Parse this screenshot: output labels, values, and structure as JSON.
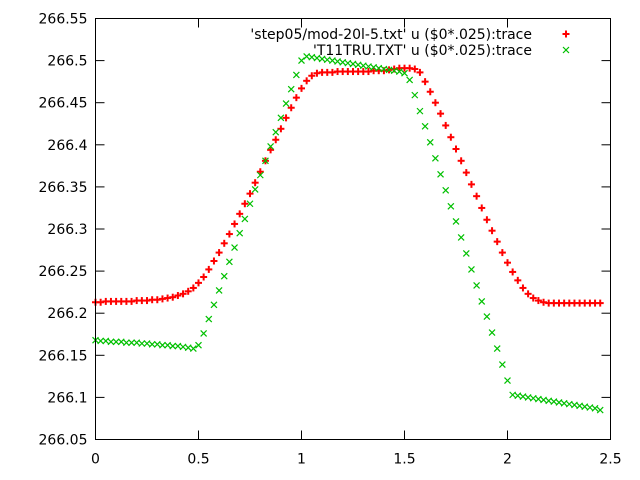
{
  "chart_data": {
    "type": "scatter",
    "title": "",
    "xlabel": "",
    "ylabel": "",
    "xlim": [
      0,
      2.5
    ],
    "ylim": [
      266.05,
      266.55
    ],
    "x_ticks": [
      "0",
      "0.5",
      "1",
      "1.5",
      "2",
      "2.5"
    ],
    "y_ticks": [
      "266.05",
      "266.1",
      "266.15",
      "266.2",
      "266.25",
      "266.3",
      "266.35",
      "266.4",
      "266.45",
      "266.5",
      "266.55"
    ],
    "x_tick_values": [
      0,
      0.5,
      1,
      1.5,
      2,
      2.5
    ],
    "y_tick_values": [
      266.05,
      266.1,
      266.15,
      266.2,
      266.25,
      266.3,
      266.35,
      266.4,
      266.45,
      266.5,
      266.55
    ],
    "grid": false,
    "legend_position": "top-right",
    "series": [
      {
        "name": "'step05/mod-20l-5.txt' u ($0*.025):trace",
        "marker": "plus",
        "color": "#ff0000",
        "x": [
          0,
          0.025,
          0.05,
          0.075,
          0.1,
          0.125,
          0.15,
          0.175,
          0.2,
          0.225,
          0.25,
          0.275,
          0.3,
          0.325,
          0.35,
          0.375,
          0.4,
          0.425,
          0.45,
          0.475,
          0.5,
          0.525,
          0.55,
          0.575,
          0.6,
          0.625,
          0.65,
          0.675,
          0.7,
          0.725,
          0.75,
          0.775,
          0.8,
          0.825,
          0.85,
          0.875,
          0.9,
          0.925,
          0.95,
          0.975,
          1,
          1.025,
          1.05,
          1.075,
          1.1,
          1.125,
          1.15,
          1.175,
          1.2,
          1.225,
          1.25,
          1.275,
          1.3,
          1.325,
          1.35,
          1.375,
          1.4,
          1.425,
          1.45,
          1.475,
          1.5,
          1.525,
          1.55,
          1.575,
          1.6,
          1.625,
          1.65,
          1.675,
          1.7,
          1.725,
          1.75,
          1.775,
          1.8,
          1.825,
          1.85,
          1.875,
          1.9,
          1.925,
          1.95,
          1.975,
          2,
          2.025,
          2.05,
          2.075,
          2.1,
          2.125,
          2.15,
          2.175,
          2.2,
          2.225,
          2.25,
          2.275,
          2.3,
          2.325,
          2.35,
          2.375,
          2.4,
          2.425,
          2.45
        ],
        "y": [
          266.213,
          266.213,
          266.214,
          266.214,
          266.214,
          266.214,
          266.214,
          266.214,
          266.215,
          266.215,
          266.215,
          266.216,
          266.216,
          266.217,
          266.218,
          266.219,
          266.221,
          266.223,
          266.226,
          266.23,
          266.236,
          266.243,
          266.252,
          266.262,
          266.272,
          266.283,
          266.294,
          266.306,
          266.318,
          266.33,
          266.342,
          266.355,
          266.368,
          266.381,
          266.394,
          266.406,
          266.419,
          266.432,
          266.444,
          266.456,
          266.467,
          266.476,
          266.482,
          266.485,
          266.486,
          266.486,
          266.486,
          266.487,
          266.487,
          266.487,
          266.487,
          266.487,
          266.487,
          266.487,
          266.488,
          266.488,
          266.488,
          266.489,
          266.49,
          266.491,
          266.491,
          266.491,
          266.49,
          266.486,
          266.475,
          266.463,
          266.45,
          266.437,
          266.423,
          266.409,
          266.395,
          266.381,
          266.367,
          266.353,
          266.339,
          266.325,
          266.311,
          266.298,
          266.285,
          266.272,
          266.26,
          266.249,
          266.239,
          266.23,
          266.223,
          266.218,
          266.215,
          266.213,
          266.212,
          266.212,
          266.212,
          266.212,
          266.212,
          266.212,
          266.212,
          266.212,
          266.212,
          266.212,
          266.212
        ]
      },
      {
        "name": "'T11TRU.TXT' u ($0*.025):trace",
        "marker": "cross",
        "color": "#00c000",
        "x": [
          0,
          0.025,
          0.05,
          0.075,
          0.1,
          0.125,
          0.15,
          0.175,
          0.2,
          0.225,
          0.25,
          0.275,
          0.3,
          0.325,
          0.35,
          0.375,
          0.4,
          0.425,
          0.45,
          0.475,
          0.5,
          0.525,
          0.55,
          0.575,
          0.6,
          0.625,
          0.65,
          0.675,
          0.7,
          0.725,
          0.75,
          0.775,
          0.8,
          0.825,
          0.85,
          0.875,
          0.9,
          0.925,
          0.95,
          0.975,
          1,
          1.025,
          1.05,
          1.075,
          1.1,
          1.125,
          1.15,
          1.175,
          1.2,
          1.225,
          1.25,
          1.275,
          1.3,
          1.325,
          1.35,
          1.375,
          1.4,
          1.425,
          1.45,
          1.475,
          1.5,
          1.525,
          1.55,
          1.575,
          1.6,
          1.625,
          1.65,
          1.675,
          1.7,
          1.725,
          1.75,
          1.775,
          1.8,
          1.825,
          1.85,
          1.875,
          1.9,
          1.925,
          1.95,
          1.975,
          2,
          2.025,
          2.05,
          2.075,
          2.1,
          2.125,
          2.15,
          2.175,
          2.2,
          2.225,
          2.25,
          2.275,
          2.3,
          2.325,
          2.35,
          2.375,
          2.4,
          2.425,
          2.45
        ],
        "y": [
          266.168,
          266.167,
          266.167,
          266.166,
          266.166,
          266.166,
          266.165,
          266.165,
          266.165,
          266.164,
          266.164,
          266.163,
          266.163,
          266.162,
          266.162,
          266.161,
          266.161,
          266.16,
          266.159,
          266.158,
          266.162,
          266.176,
          266.193,
          266.21,
          266.227,
          266.244,
          266.261,
          266.278,
          266.295,
          266.312,
          266.33,
          266.347,
          266.364,
          266.381,
          266.398,
          266.415,
          266.432,
          266.449,
          266.466,
          266.483,
          266.5,
          266.505,
          266.504,
          266.503,
          266.502,
          266.501,
          266.5,
          266.499,
          266.498,
          266.497,
          266.496,
          266.495,
          266.494,
          266.493,
          266.492,
          266.491,
          266.49,
          266.489,
          266.488,
          266.487,
          266.485,
          266.477,
          266.459,
          266.44,
          266.422,
          266.403,
          266.384,
          266.365,
          266.346,
          266.327,
          266.309,
          266.29,
          266.271,
          266.252,
          266.233,
          266.214,
          266.196,
          266.177,
          266.158,
          266.139,
          266.12,
          266.103,
          266.102,
          266.101,
          266.1,
          266.099,
          266.098,
          266.097,
          266.096,
          266.095,
          266.094,
          266.093,
          266.092,
          266.091,
          266.09,
          266.089,
          266.088,
          266.087,
          266.085
        ]
      }
    ]
  }
}
